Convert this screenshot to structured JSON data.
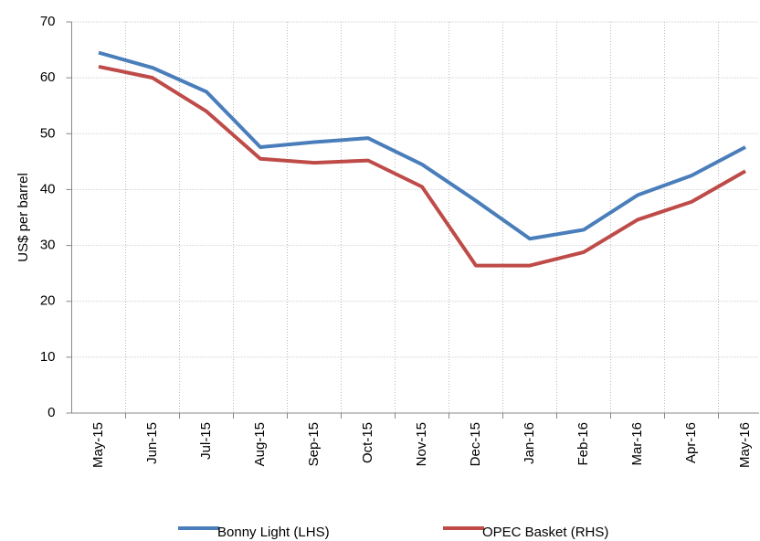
{
  "chart_data": {
    "type": "line",
    "y_label": "US$ per barrel",
    "categories": [
      "May-15",
      "Jun-15",
      "Jul-15",
      "Aug-15",
      "Sep-15",
      "Oct-15",
      "Nov-15",
      "Dec-15",
      "Jan-16",
      "Feb-16",
      "Mar-16",
      "Apr-16",
      "May-16"
    ],
    "series": [
      {
        "name": "Bonny Light (LHS)",
        "color": "#4a7ebb",
        "values": [
          64.5,
          61.8,
          57.5,
          47.6,
          48.5,
          49.2,
          44.5,
          38,
          31.2,
          32.8,
          39,
          42.5,
          47.6
        ]
      },
      {
        "name": "OPEC Basket (RHS)",
        "color": "#be4b48",
        "values": [
          62,
          60,
          54,
          45.5,
          44.8,
          45.2,
          40.5,
          26.4,
          26.4,
          28.8,
          34.6,
          37.8,
          43.3
        ]
      }
    ],
    "ylim": [
      0,
      70
    ],
    "yticks": [
      0,
      10,
      20,
      30,
      40,
      50,
      60,
      70
    ],
    "grid": true,
    "legend": "bottom"
  }
}
